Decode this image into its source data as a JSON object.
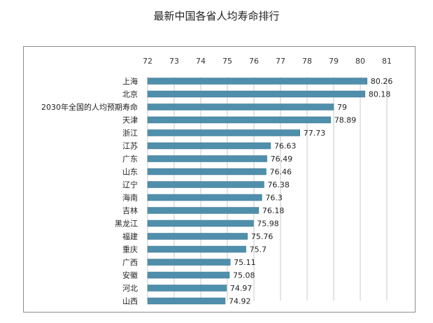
{
  "chart_data": {
    "type": "bar",
    "orientation": "horizontal",
    "title": "最新中国各省人均寿命排行",
    "categories": [
      "上海",
      "北京",
      "2030年全国的人均预期寿命",
      "天津",
      "浙江",
      "江苏",
      "广东",
      "山东",
      "辽宁",
      "海南",
      "吉林",
      "黑龙江",
      "福建",
      "重庆",
      "广西",
      "安徽",
      "河北",
      "山西"
    ],
    "values": [
      80.26,
      80.18,
      79,
      78.89,
      77.73,
      76.63,
      76.49,
      76.46,
      76.38,
      76.3,
      76.18,
      75.98,
      75.76,
      75.7,
      75.11,
      75.08,
      74.97,
      74.92
    ],
    "value_labels": [
      "80.26",
      "80.18",
      "79",
      "78.89",
      "77.73",
      "76.63",
      "76.49",
      "76.46",
      "76.38",
      "76.3",
      "76.18",
      "75.98",
      "75.76",
      "75.7",
      "75.11",
      "75.08",
      "74.97",
      "74.92"
    ],
    "xaxis_position": "top",
    "xlim": [
      72,
      81
    ],
    "xticks": [
      "72",
      "73",
      "74",
      "75",
      "76",
      "77",
      "78",
      "79",
      "80",
      "81"
    ],
    "grid": "vertical",
    "legend": "none",
    "colors": {
      "bar": "#4f8fab",
      "bar_edge": "#3d7591",
      "grid": "#c8c8c8",
      "frame": "#8c8c8c"
    }
  }
}
